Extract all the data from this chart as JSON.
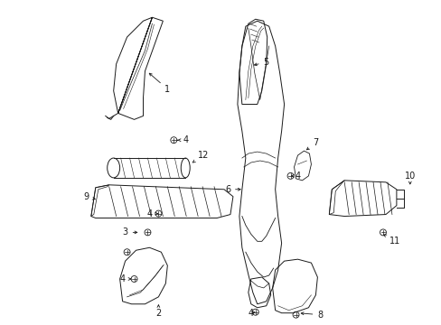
{
  "background_color": "#ffffff",
  "fig_width": 4.89,
  "fig_height": 3.6,
  "dpi": 100,
  "line_color": "#1a1a1a",
  "lw": 0.7,
  "fontsize": 7.0
}
